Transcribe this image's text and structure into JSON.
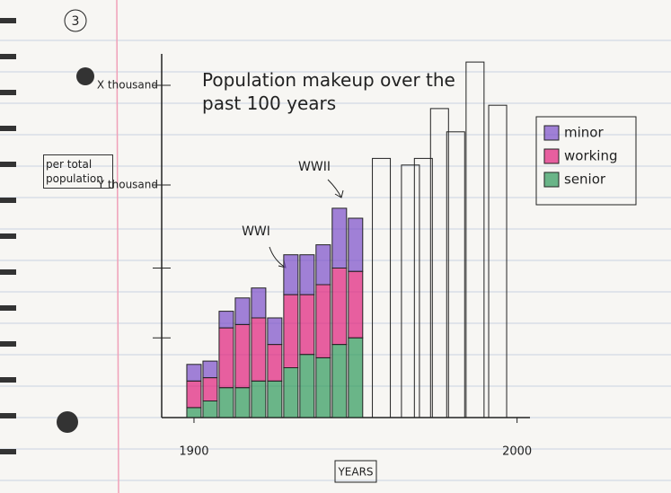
{
  "chart_data": {
    "type": "stacked_bar",
    "title": "Population makeup over the past 100 years",
    "page_number": "3",
    "y_axis_label": "per total population",
    "x_axis_label": "YEARS",
    "annotations": [
      "WWI",
      "WWII"
    ],
    "x": [
      1900,
      1905,
      1910,
      1915,
      1920,
      1925,
      1930,
      1935,
      1940,
      1945,
      1950,
      1958,
      1967,
      1971,
      1976,
      1981,
      1987,
      1994
    ],
    "series": [
      {
        "name": "minor",
        "color": "#7b4fc9",
        "values": [
          5,
          5,
          5,
          8,
          9,
          8,
          12,
          12,
          12,
          18,
          16,
          null,
          null,
          null,
          null,
          null,
          null,
          null
        ]
      },
      {
        "name": "working",
        "color": "#e0207a",
        "values": [
          8,
          7,
          18,
          19,
          19,
          11,
          22,
          18,
          22,
          23,
          20,
          null,
          null,
          null,
          null,
          null,
          null,
          null
        ]
      },
      {
        "name": "senior",
        "color": "#2e9a5a",
        "values": [
          3,
          5,
          9,
          9,
          11,
          11,
          15,
          19,
          18,
          22,
          24,
          null,
          null,
          null,
          null,
          null,
          null,
          null
        ]
      },
      {
        "color": "none",
        "values": [
          null,
          null,
          null,
          null,
          null,
          null,
          null,
          null,
          null,
          null,
          null,
          78,
          76,
          78,
          93,
          86,
          107,
          94
        ]
      }
    ],
    "xlim": [
      1890,
      2004
    ],
    "xticks": [
      1900,
      2000
    ],
    "ylim": [
      0,
      110
    ],
    "yticks": [
      {
        "value": 24,
        "label": null
      },
      {
        "value": 45,
        "label": null
      },
      {
        "value": 70,
        "label": "Y thousand"
      },
      {
        "value": 100,
        "label": "X thousand"
      }
    ],
    "legend": "upper right"
  }
}
